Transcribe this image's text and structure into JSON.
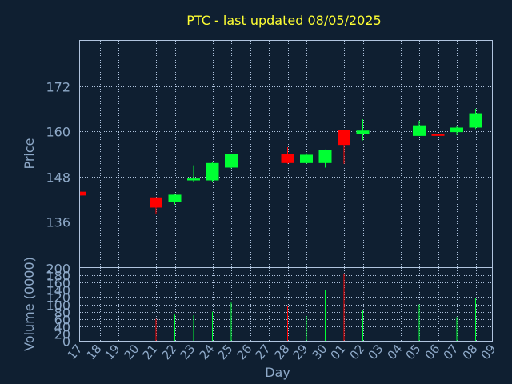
{
  "chart_data": {
    "type": "candlestick",
    "title": "PTC - last updated 08/05/2025",
    "xlabel": "Day",
    "price_panel": {
      "ylabel": "Price",
      "yticks": [
        136,
        148,
        160,
        172
      ],
      "ylim": [
        124,
        184
      ],
      "grid": true
    },
    "volume_panel": {
      "ylabel": "Volume (0000)",
      "yticks": [
        0,
        20,
        40,
        60,
        80,
        100,
        120,
        140,
        160,
        180,
        200
      ],
      "ylim": [
        0,
        200
      ],
      "grid": true
    },
    "x_tick_labels": [
      "17",
      "18",
      "19",
      "20",
      "21",
      "22",
      "23",
      "24",
      "25",
      "26",
      "27",
      "28",
      "29",
      "30",
      "01",
      "02",
      "03",
      "04",
      "05",
      "06",
      "07",
      "08",
      "09"
    ],
    "candles": [
      {
        "day": "17",
        "open": 144.0,
        "high": 144.0,
        "low": 143.0,
        "close": 143.0,
        "volume": 0
      },
      {
        "day": "21",
        "open": 142.5,
        "high": 142.5,
        "low": 138.0,
        "close": 139.8,
        "volume": 60
      },
      {
        "day": "22",
        "open": 141.2,
        "high": 143.5,
        "low": 140.6,
        "close": 143.2,
        "volume": 72
      },
      {
        "day": "23",
        "open": 147.0,
        "high": 151.0,
        "low": 146.6,
        "close": 147.5,
        "volume": 70
      },
      {
        "day": "24",
        "open": 147.0,
        "high": 151.8,
        "low": 146.6,
        "close": 151.6,
        "volume": 80
      },
      {
        "day": "25",
        "open": 150.4,
        "high": 154.0,
        "low": 150.2,
        "close": 154.0,
        "volume": 105
      },
      {
        "day": "28",
        "open": 153.9,
        "high": 155.8,
        "low": 151.4,
        "close": 151.6,
        "volume": 95
      },
      {
        "day": "29",
        "open": 151.6,
        "high": 154.2,
        "low": 151.4,
        "close": 153.8,
        "volume": 68
      },
      {
        "day": "30",
        "open": 151.6,
        "high": 155.2,
        "low": 150.4,
        "close": 155.0,
        "volume": 140
      },
      {
        "day": "01",
        "open": 160.4,
        "high": 160.4,
        "low": 151.4,
        "close": 156.4,
        "volume": 185
      },
      {
        "day": "02",
        "open": 159.2,
        "high": 163.2,
        "low": 157.6,
        "close": 160.2,
        "volume": 85
      },
      {
        "day": "05",
        "open": 158.8,
        "high": 162.8,
        "low": 158.8,
        "close": 161.6,
        "volume": 100
      },
      {
        "day": "06",
        "open": 159.4,
        "high": 162.8,
        "low": 158.6,
        "close": 158.8,
        "volume": 82
      },
      {
        "day": "07",
        "open": 159.8,
        "high": 161.4,
        "low": 159.0,
        "close": 161.0,
        "volume": 65
      },
      {
        "day": "08",
        "open": 161.0,
        "high": 166.0,
        "low": 160.6,
        "close": 164.8,
        "volume": 118
      }
    ],
    "colors": {
      "up": "#00ff33",
      "down": "#ff0000",
      "background": "#0f1f31",
      "title": "#ffff33",
      "axis_text": "#8ea9c8",
      "grid": "#b0c4de"
    }
  }
}
